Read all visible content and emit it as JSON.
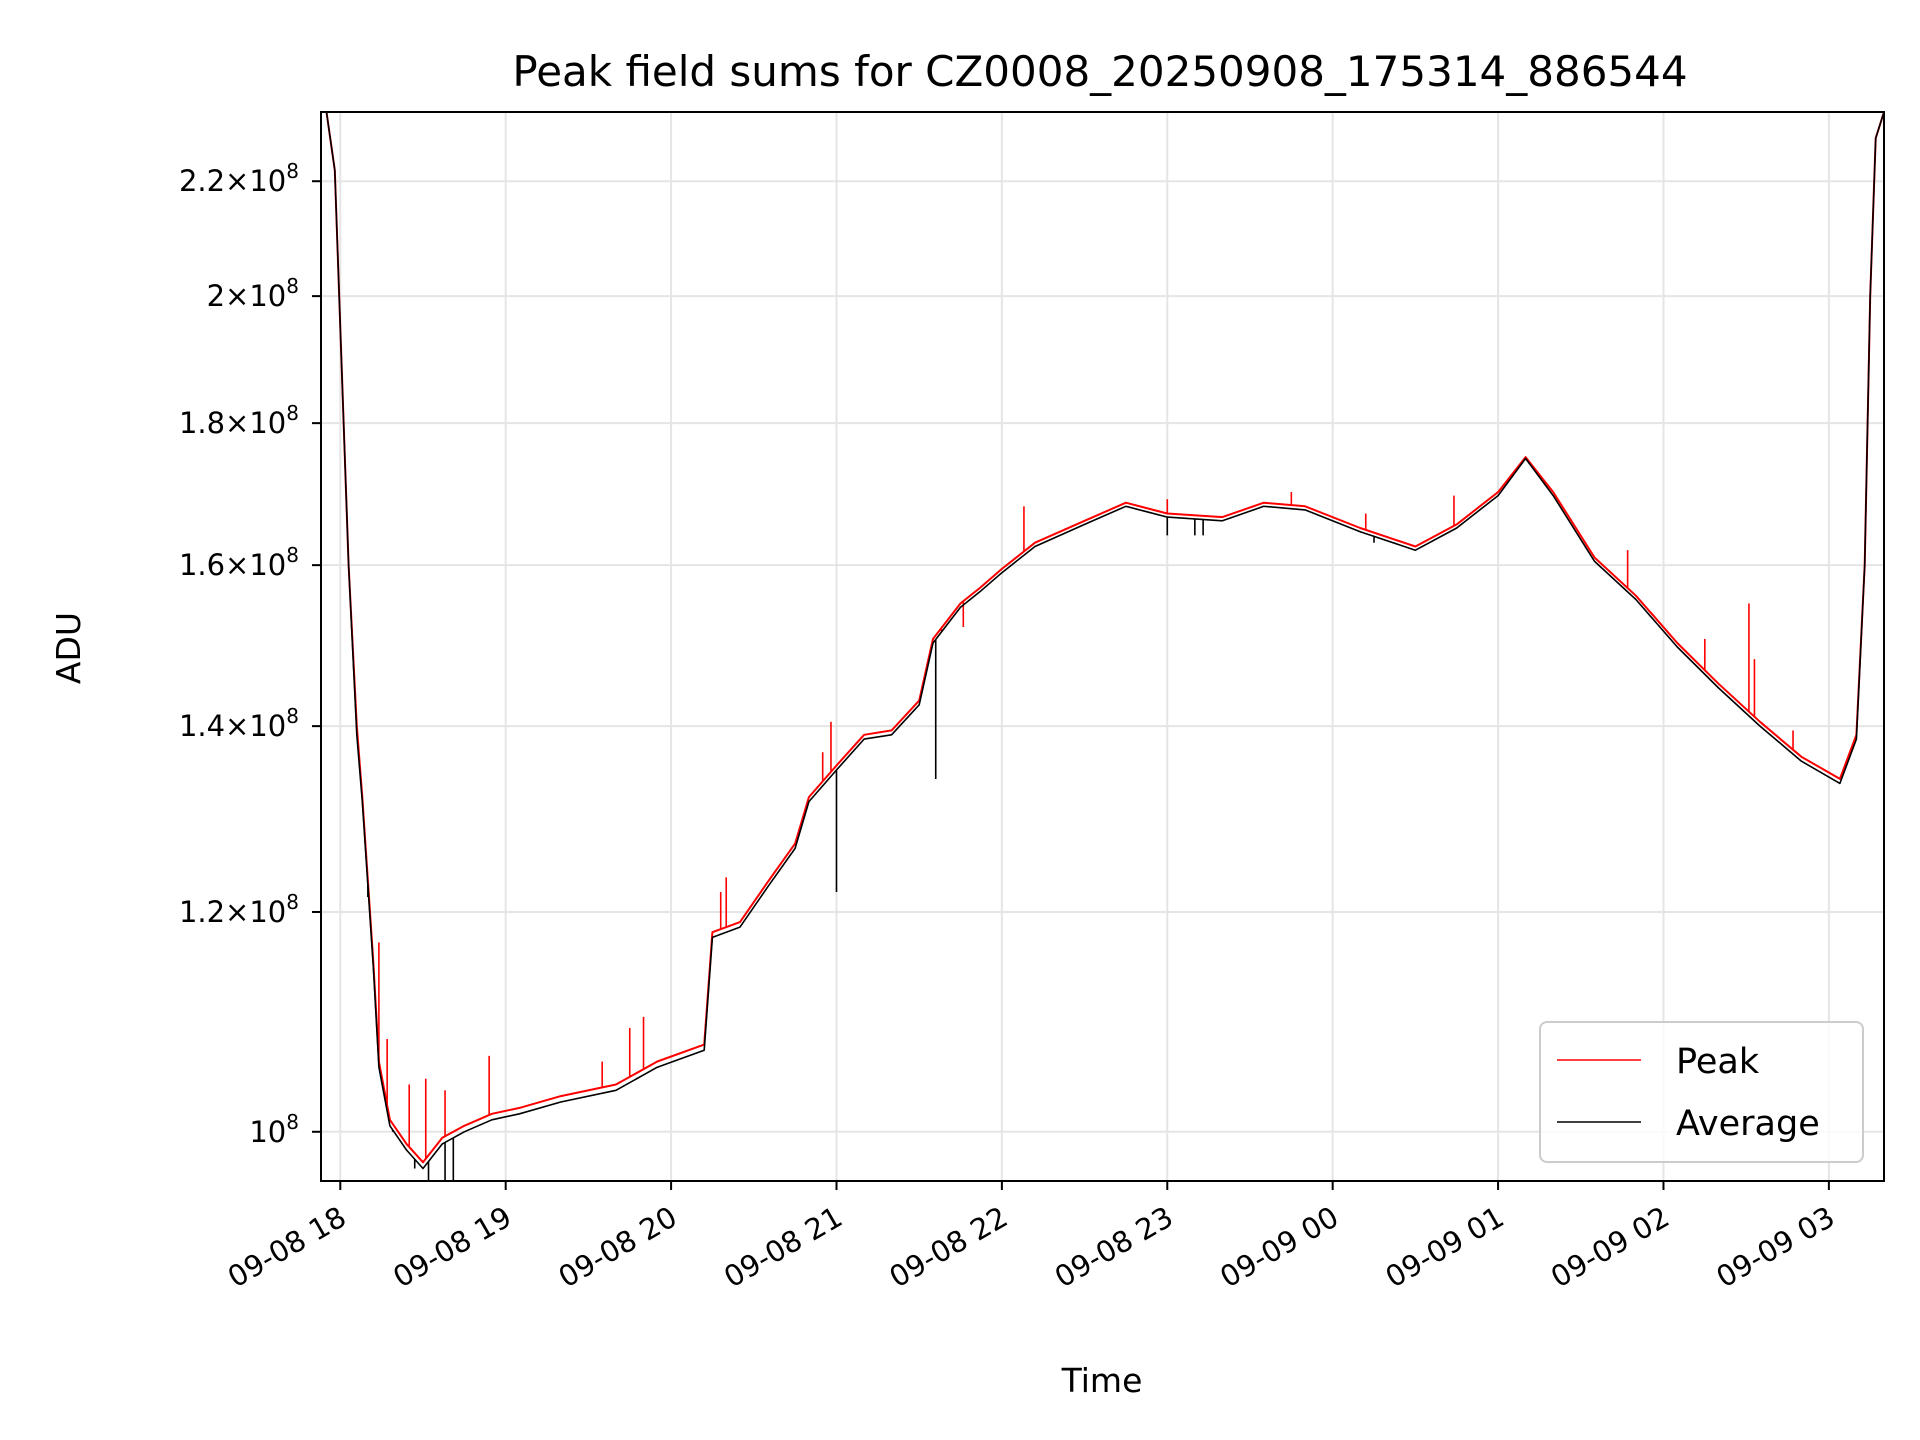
{
  "chart_data": {
    "type": "line",
    "title": "Peak field sums for CZ0008_20250908_175314_886544",
    "xlabel": "Time",
    "ylabel": "ADU",
    "yscale": "log",
    "grid": true,
    "legend_position": "lower right",
    "ylim": [
      96000000,
      233000000
    ],
    "xlim": [
      "2025-09-08 17:53",
      "2025-09-09 03:20"
    ],
    "x_ticks": [
      "2025-09-08 18:00",
      "2025-09-08 19:00",
      "2025-09-08 20:00",
      "2025-09-08 21:00",
      "2025-09-08 22:00",
      "2025-09-08 23:00",
      "2025-09-09 00:00",
      "2025-09-09 01:00",
      "2025-09-09 02:00",
      "2025-09-09 03:00"
    ],
    "x_tick_labels": [
      "09-08 18",
      "09-08 19",
      "09-08 20",
      "09-08 21",
      "09-08 22",
      "09-08 23",
      "09-09 00",
      "09-09 01",
      "09-09 02",
      "09-09 03"
    ],
    "y_ticks": [
      100000000,
      120000000,
      140000000,
      160000000,
      180000000,
      200000000,
      220000000
    ],
    "y_tick_labels": [
      {
        "mantissa": "",
        "exponent": "8"
      },
      {
        "mantissa": "1.2",
        "exponent": "8"
      },
      {
        "mantissa": "1.4",
        "exponent": "8"
      },
      {
        "mantissa": "1.6",
        "exponent": "8"
      },
      {
        "mantissa": "1.8",
        "exponent": "8"
      },
      {
        "mantissa": "2",
        "exponent": "8"
      },
      {
        "mantissa": "2.2",
        "exponent": "8"
      }
    ],
    "series": [
      {
        "name": "Peak",
        "color": "#ff0000",
        "points": [
          [
            "2025-09-08 17:53",
            233000000
          ],
          [
            "2025-09-08 17:55",
            233000000
          ],
          [
            "2025-09-08 17:58",
            222000000
          ],
          [
            "2025-09-08 18:03",
            160000000
          ],
          [
            "2025-09-08 18:06",
            140000000
          ],
          [
            "2025-09-08 18:08",
            132000000
          ],
          [
            "2025-09-08 18:12",
            115000000
          ],
          [
            "2025-09-08 18:14",
            106000000
          ],
          [
            "2025-09-08 18:18",
            101000000
          ],
          [
            "2025-09-08 18:24",
            99000000
          ],
          [
            "2025-09-08 18:30",
            97500000
          ],
          [
            "2025-09-08 18:37",
            99500000
          ],
          [
            "2025-09-08 18:45",
            100500000
          ],
          [
            "2025-09-08 18:55",
            101500000
          ],
          [
            "2025-09-08 19:05",
            102000000
          ],
          [
            "2025-09-08 19:20",
            103000000
          ],
          [
            "2025-09-08 19:40",
            104000000
          ],
          [
            "2025-09-08 19:55",
            106000000
          ],
          [
            "2025-09-08 20:12",
            107500000
          ],
          [
            "2025-09-08 20:15",
            118000000
          ],
          [
            "2025-09-08 20:25",
            119000000
          ],
          [
            "2025-09-08 20:35",
            123000000
          ],
          [
            "2025-09-08 20:45",
            127000000
          ],
          [
            "2025-09-08 20:50",
            132000000
          ],
          [
            "2025-09-08 21:00",
            135500000
          ],
          [
            "2025-09-08 21:10",
            139000000
          ],
          [
            "2025-09-08 21:20",
            139500000
          ],
          [
            "2025-09-08 21:30",
            143000000
          ],
          [
            "2025-09-08 21:35",
            150500000
          ],
          [
            "2025-09-08 21:45",
            155000000
          ],
          [
            "2025-09-08 21:52",
            157000000
          ],
          [
            "2025-09-08 22:00",
            159500000
          ],
          [
            "2025-09-08 22:12",
            163000000
          ],
          [
            "2025-09-08 22:30",
            166000000
          ],
          [
            "2025-09-08 22:45",
            168500000
          ],
          [
            "2025-09-08 23:00",
            167000000
          ],
          [
            "2025-09-08 23:20",
            166500000
          ],
          [
            "2025-09-08 23:35",
            168500000
          ],
          [
            "2025-09-08 23:50",
            168000000
          ],
          [
            "2025-09-09 00:10",
            165000000
          ],
          [
            "2025-09-09 00:30",
            162500000
          ],
          [
            "2025-09-09 00:45",
            165500000
          ],
          [
            "2025-09-09 01:00",
            170000000
          ],
          [
            "2025-09-09 01:10",
            175000000
          ],
          [
            "2025-09-09 01:20",
            170000000
          ],
          [
            "2025-09-09 01:35",
            161000000
          ],
          [
            "2025-09-09 01:50",
            156000000
          ],
          [
            "2025-09-09 02:05",
            150000000
          ],
          [
            "2025-09-09 02:20",
            145000000
          ],
          [
            "2025-09-09 02:35",
            140500000
          ],
          [
            "2025-09-09 02:50",
            136500000
          ],
          [
            "2025-09-09 03:04",
            134000000
          ],
          [
            "2025-09-09 03:10",
            139000000
          ],
          [
            "2025-09-09 03:13",
            160000000
          ],
          [
            "2025-09-09 03:15",
            200000000
          ],
          [
            "2025-09-09 03:17",
            228000000
          ],
          [
            "2025-09-09 03:20",
            233000000
          ]
        ],
        "spikes": [
          [
            "2025-09-08 18:06",
            140000000
          ],
          [
            "2025-09-08 18:14",
            117000000
          ],
          [
            "2025-09-08 18:17",
            108000000
          ],
          [
            "2025-09-08 18:25",
            104000000
          ],
          [
            "2025-09-08 18:31",
            104500000
          ],
          [
            "2025-09-08 18:38",
            103500000
          ],
          [
            "2025-09-08 18:54",
            106500000
          ],
          [
            "2025-09-08 19:35",
            106000000
          ],
          [
            "2025-09-08 19:45",
            109000000
          ],
          [
            "2025-09-08 19:50",
            110000000
          ],
          [
            "2025-09-08 20:18",
            122000000
          ],
          [
            "2025-09-08 20:20",
            123500000
          ],
          [
            "2025-09-08 20:55",
            137000000
          ],
          [
            "2025-09-08 20:58",
            140500000
          ],
          [
            "2025-09-08 21:38",
            151500000
          ],
          [
            "2025-09-08 21:46",
            152000000
          ],
          [
            "2025-09-08 22:08",
            168000000
          ],
          [
            "2025-09-08 23:00",
            169000000
          ],
          [
            "2025-09-08 23:45",
            170000000
          ],
          [
            "2025-09-09 00:12",
            167000000
          ],
          [
            "2025-09-09 00:44",
            169500000
          ],
          [
            "2025-09-09 01:47",
            162000000
          ],
          [
            "2025-09-09 02:15",
            150500000
          ],
          [
            "2025-09-09 02:31",
            155000000
          ],
          [
            "2025-09-09 02:33",
            148000000
          ],
          [
            "2025-09-09 02:47",
            139500000
          ]
        ]
      },
      {
        "name": "Average",
        "color": "#000000",
        "points": [
          [
            "2025-09-08 17:53",
            233000000
          ],
          [
            "2025-09-08 17:55",
            233000000
          ],
          [
            "2025-09-08 17:58",
            222000000
          ],
          [
            "2025-09-08 18:03",
            160000000
          ],
          [
            "2025-09-08 18:06",
            139000000
          ],
          [
            "2025-09-08 18:08",
            131500000
          ],
          [
            "2025-09-08 18:12",
            114500000
          ],
          [
            "2025-09-08 18:14",
            105500000
          ],
          [
            "2025-09-08 18:18",
            100500000
          ],
          [
            "2025-09-08 18:24",
            98500000
          ],
          [
            "2025-09-08 18:30",
            97000000
          ],
          [
            "2025-09-08 18:37",
            99000000
          ],
          [
            "2025-09-08 18:45",
            100000000
          ],
          [
            "2025-09-08 18:55",
            101000000
          ],
          [
            "2025-09-08 19:05",
            101500000
          ],
          [
            "2025-09-08 19:20",
            102500000
          ],
          [
            "2025-09-08 19:40",
            103500000
          ],
          [
            "2025-09-08 19:55",
            105500000
          ],
          [
            "2025-09-08 20:12",
            107000000
          ],
          [
            "2025-09-08 20:15",
            117500000
          ],
          [
            "2025-09-08 20:25",
            118500000
          ],
          [
            "2025-09-08 20:35",
            122500000
          ],
          [
            "2025-09-08 20:45",
            126500000
          ],
          [
            "2025-09-08 20:50",
            131500000
          ],
          [
            "2025-09-08 21:00",
            135000000
          ],
          [
            "2025-09-08 21:10",
            138500000
          ],
          [
            "2025-09-08 21:20",
            139000000
          ],
          [
            "2025-09-08 21:30",
            142500000
          ],
          [
            "2025-09-08 21:35",
            150000000
          ],
          [
            "2025-09-08 21:45",
            154500000
          ],
          [
            "2025-09-08 21:52",
            156500000
          ],
          [
            "2025-09-08 22:00",
            159000000
          ],
          [
            "2025-09-08 22:12",
            162500000
          ],
          [
            "2025-09-08 22:30",
            165500000
          ],
          [
            "2025-09-08 22:45",
            168000000
          ],
          [
            "2025-09-08 23:00",
            166500000
          ],
          [
            "2025-09-08 23:20",
            166000000
          ],
          [
            "2025-09-08 23:35",
            168000000
          ],
          [
            "2025-09-08 23:50",
            167500000
          ],
          [
            "2025-09-09 00:10",
            164500000
          ],
          [
            "2025-09-09 00:30",
            162000000
          ],
          [
            "2025-09-09 00:45",
            165000000
          ],
          [
            "2025-09-09 01:00",
            169500000
          ],
          [
            "2025-09-09 01:10",
            174800000
          ],
          [
            "2025-09-09 01:20",
            169500000
          ],
          [
            "2025-09-09 01:35",
            160500000
          ],
          [
            "2025-09-09 01:50",
            155500000
          ],
          [
            "2025-09-09 02:05",
            149500000
          ],
          [
            "2025-09-09 02:20",
            144500000
          ],
          [
            "2025-09-09 02:35",
            140000000
          ],
          [
            "2025-09-09 02:50",
            136000000
          ],
          [
            "2025-09-09 03:04",
            133500000
          ],
          [
            "2025-09-09 03:10",
            138500000
          ],
          [
            "2025-09-09 03:13",
            160000000
          ],
          [
            "2025-09-09 03:15",
            200000000
          ],
          [
            "2025-09-09 03:17",
            228000000
          ],
          [
            "2025-09-09 03:20",
            233000000
          ]
        ],
        "dips": [
          [
            "2025-09-08 18:10",
            121500000
          ],
          [
            "2025-09-08 18:19",
            100000000
          ],
          [
            "2025-09-08 18:27",
            97000000
          ],
          [
            "2025-09-08 18:32",
            96000000
          ],
          [
            "2025-09-08 18:38",
            96000000
          ],
          [
            "2025-09-08 18:41",
            96000000
          ],
          [
            "2025-09-08 21:00",
            122000000
          ],
          [
            "2025-09-08 21:36",
            134000000
          ],
          [
            "2025-09-08 23:00",
            164000000
          ],
          [
            "2025-09-08 23:10",
            164000000
          ],
          [
            "2025-09-08 23:13",
            164000000
          ],
          [
            "2025-09-09 00:15",
            163000000
          ]
        ]
      }
    ]
  }
}
